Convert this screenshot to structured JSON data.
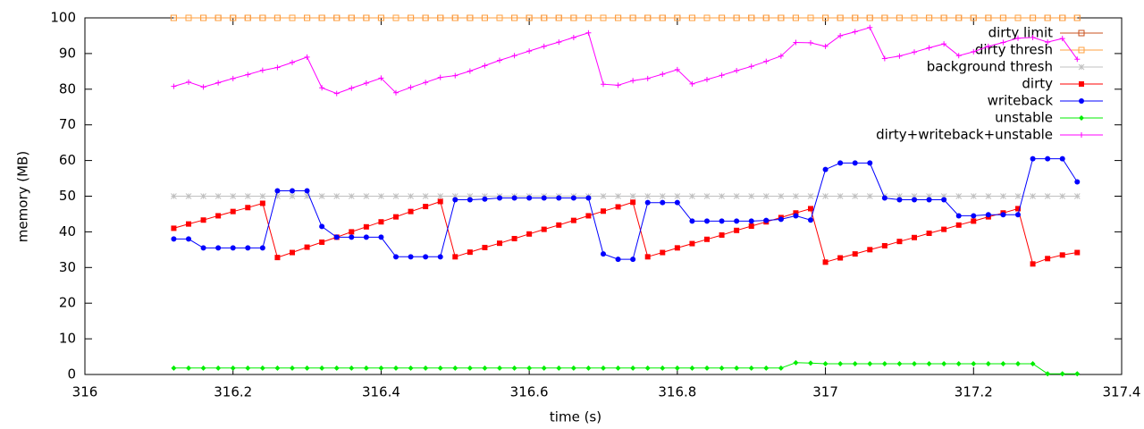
{
  "chart_data": {
    "type": "line",
    "xlabel": "time (s)",
    "ylabel": "memory (MB)",
    "xlim": [
      316,
      317.4
    ],
    "xticks": [
      316,
      316.2,
      316.4,
      316.6,
      316.8,
      317,
      317.2,
      317.4
    ],
    "ylim": [
      0,
      100
    ],
    "yticks": [
      0,
      10,
      20,
      30,
      40,
      50,
      60,
      70,
      80,
      90,
      100
    ],
    "grid": false,
    "legend": "top-right",
    "x": [
      316.12,
      316.14,
      316.16,
      316.18,
      316.2,
      316.22,
      316.24,
      316.26,
      316.28,
      316.3,
      316.32,
      316.34,
      316.36,
      316.38,
      316.4,
      316.42,
      316.44,
      316.46,
      316.48,
      316.5,
      316.52,
      316.54,
      316.56,
      316.58,
      316.6,
      316.62,
      316.64,
      316.66,
      316.68,
      316.7,
      316.72,
      316.74,
      316.76,
      316.78,
      316.8,
      316.82,
      316.84,
      316.86,
      316.88,
      316.9,
      316.92,
      316.94,
      316.96,
      316.98,
      317,
      317.02,
      317.04,
      317.06,
      317.08,
      317.1,
      317.12,
      317.14,
      317.16,
      317.18,
      317.2,
      317.22,
      317.24,
      317.26,
      317.28,
      317.3,
      317.32,
      317.34
    ],
    "series": [
      {
        "name": "dirty limit",
        "color": "#c8501e",
        "marker": "open-square",
        "values": [
          100,
          100,
          100,
          100,
          100,
          100,
          100,
          100,
          100,
          100,
          100,
          100,
          100,
          100,
          100,
          100,
          100,
          100,
          100,
          100,
          100,
          100,
          100,
          100,
          100,
          100,
          100,
          100,
          100,
          100,
          100,
          100,
          100,
          100,
          100,
          100,
          100,
          100,
          100,
          100,
          100,
          100,
          100,
          100,
          100,
          100,
          100,
          100,
          100,
          100,
          100,
          100,
          100,
          100,
          100,
          100,
          100,
          100,
          100,
          100,
          100,
          100
        ]
      },
      {
        "name": "dirty thresh",
        "color": "#ffa040",
        "marker": "open-square",
        "values": [
          100,
          100,
          100,
          100,
          100,
          100,
          100,
          100,
          100,
          100,
          100,
          100,
          100,
          100,
          100,
          100,
          100,
          100,
          100,
          100,
          100,
          100,
          100,
          100,
          100,
          100,
          100,
          100,
          100,
          100,
          100,
          100,
          100,
          100,
          100,
          100,
          100,
          100,
          100,
          100,
          100,
          100,
          100,
          100,
          100,
          100,
          100,
          100,
          100,
          100,
          100,
          100,
          100,
          100,
          100,
          100,
          100,
          100,
          100,
          100,
          100,
          100
        ]
      },
      {
        "name": "background thresh",
        "color": "#c0c0c0",
        "marker": "star",
        "values": [
          50,
          50,
          50,
          50,
          50,
          50,
          50,
          50,
          50,
          50,
          50,
          50,
          50,
          50,
          50,
          50,
          50,
          50,
          50,
          50,
          50,
          50,
          50,
          50,
          50,
          50,
          50,
          50,
          50,
          50,
          50,
          50,
          50,
          50,
          50,
          50,
          50,
          50,
          50,
          50,
          50,
          50,
          50,
          50,
          50,
          50,
          50,
          50,
          50,
          50,
          50,
          50,
          50,
          50,
          50,
          50,
          50,
          50,
          50,
          50,
          50,
          50
        ]
      },
      {
        "name": "dirty",
        "color": "#ff0000",
        "marker": "square",
        "values": [
          41,
          42.2,
          43.3,
          44.5,
          45.7,
          46.8,
          48,
          32.8,
          34.2,
          35.7,
          37.1,
          38.5,
          40,
          41.4,
          42.8,
          44.2,
          45.7,
          47.1,
          48.5,
          33,
          34.3,
          35.6,
          36.8,
          38.1,
          39.4,
          40.7,
          41.9,
          43.2,
          44.5,
          45.8,
          47,
          48.3,
          33,
          34.2,
          35.5,
          36.7,
          37.9,
          39.1,
          40.4,
          41.6,
          42.8,
          44,
          45.3,
          46.5,
          31.5,
          32.7,
          33.8,
          35,
          36.1,
          37.3,
          38.4,
          39.6,
          40.7,
          41.9,
          43,
          44.2,
          45.3,
          46.5,
          31,
          32.5,
          33.5,
          34.2
        ]
      },
      {
        "name": "writeback",
        "color": "#0000ff",
        "marker": "circle",
        "values": [
          38,
          38,
          35.5,
          35.5,
          35.5,
          35.5,
          35.5,
          51.5,
          51.5,
          51.5,
          41.5,
          38.5,
          38.5,
          38.5,
          38.5,
          33,
          33,
          33,
          33,
          49,
          49,
          49.2,
          49.5,
          49.5,
          49.5,
          49.5,
          49.5,
          49.5,
          49.5,
          33.8,
          32.3,
          32.3,
          48.2,
          48.2,
          48.2,
          43,
          43,
          43,
          43,
          43,
          43.2,
          43.5,
          44.5,
          43.3,
          57.5,
          59.3,
          59.3,
          59.3,
          49.5,
          49,
          49,
          49,
          49,
          44.5,
          44.5,
          44.8,
          44.8,
          44.8,
          60.5,
          60.5,
          60.5,
          54
        ]
      },
      {
        "name": "unstable",
        "color": "#00ee00",
        "marker": "diamond",
        "values": [
          1.8,
          1.8,
          1.8,
          1.8,
          1.8,
          1.8,
          1.8,
          1.8,
          1.8,
          1.8,
          1.8,
          1.8,
          1.8,
          1.8,
          1.8,
          1.8,
          1.8,
          1.8,
          1.8,
          1.8,
          1.8,
          1.8,
          1.8,
          1.8,
          1.8,
          1.8,
          1.8,
          1.8,
          1.8,
          1.8,
          1.8,
          1.8,
          1.8,
          1.8,
          1.8,
          1.8,
          1.8,
          1.8,
          1.8,
          1.8,
          1.8,
          1.8,
          3.3,
          3.2,
          3,
          3,
          3,
          3,
          3,
          3,
          3,
          3,
          3,
          3,
          3,
          3,
          3,
          3,
          3,
          0.2,
          0.2,
          0.2
        ]
      },
      {
        "name": "dirty+writeback+unstable",
        "color": "#ff00ff",
        "marker": "plus",
        "values": [
          80.8,
          82,
          80.6,
          81.8,
          83,
          84.1,
          85.3,
          86.1,
          87.5,
          89,
          80.4,
          78.8,
          80.3,
          81.7,
          83.1,
          79,
          80.5,
          81.9,
          83.3,
          83.8,
          85.1,
          86.6,
          88.1,
          89.4,
          90.7,
          92,
          93.2,
          94.5,
          95.8,
          81.4,
          81.1,
          82.4,
          83,
          84.2,
          85.5,
          81.5,
          82.7,
          83.9,
          85.2,
          86.4,
          87.8,
          89.3,
          93.1,
          93,
          92,
          95,
          96.1,
          97.3,
          88.6,
          89.3,
          90.4,
          91.6,
          92.7,
          89.4,
          90.5,
          92,
          93.1,
          94.3,
          94.5,
          93.2,
          94.2,
          88.4
        ]
      }
    ]
  }
}
